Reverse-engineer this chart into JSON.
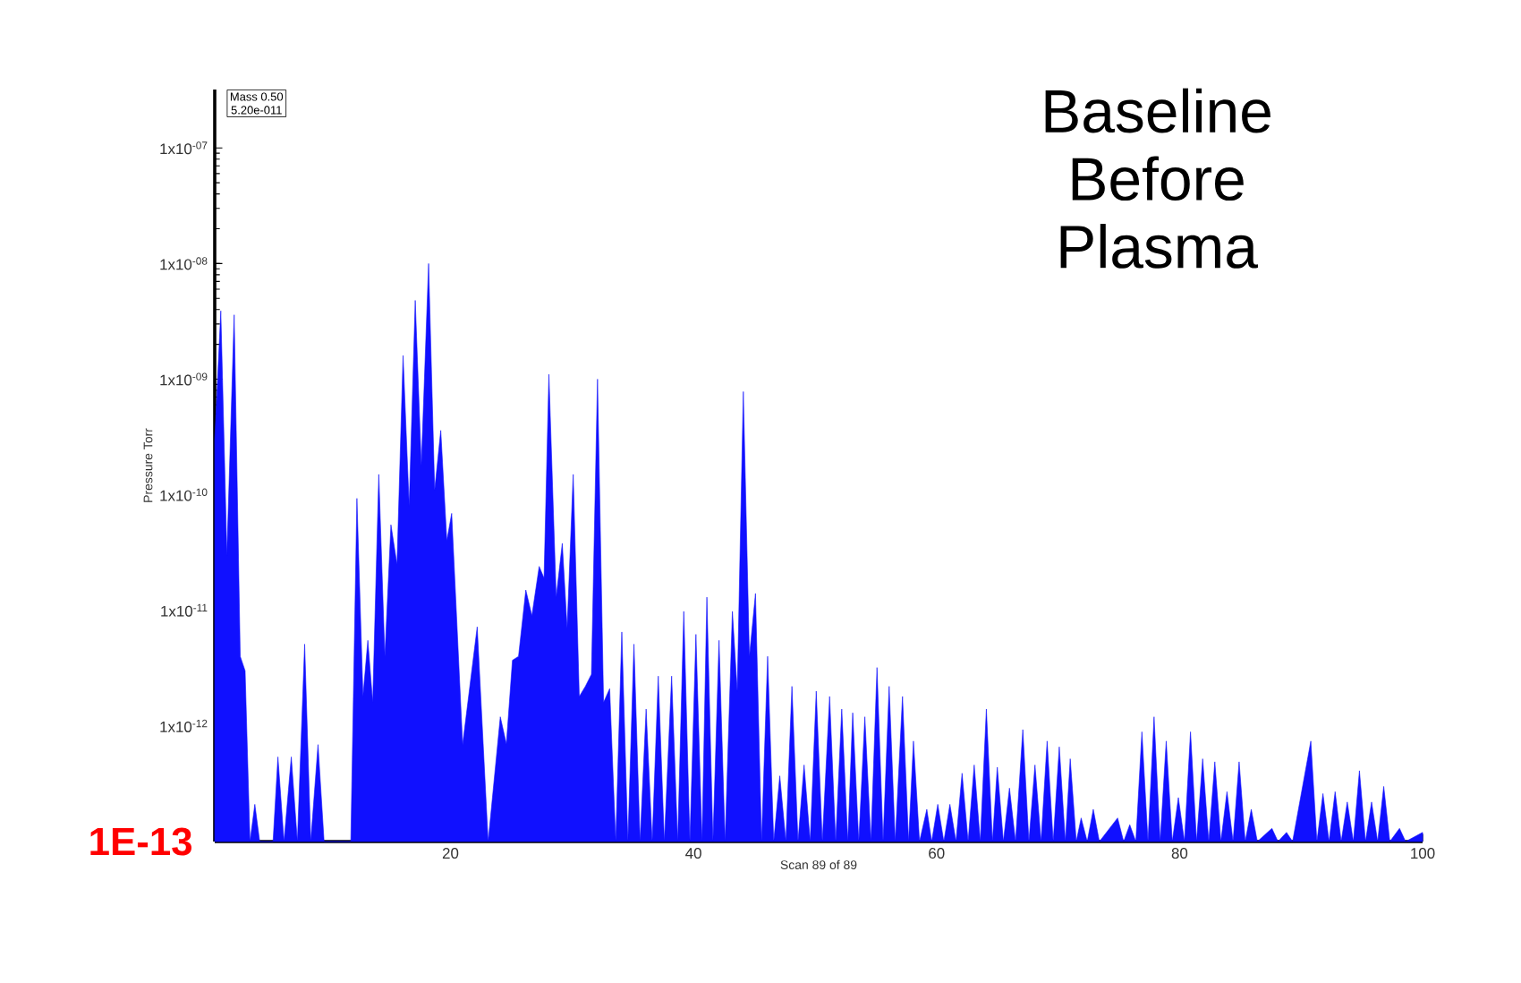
{
  "chart_data": {
    "type": "area",
    "title": "Baseline Before Plasma",
    "xlabel": "Scan 89 of 89",
    "ylabel": "Pressure Torr",
    "annotations": [
      "Mass 0.50",
      "5.20e-011",
      "1E-13"
    ],
    "log": "y",
    "xlim": [
      0.6,
      100
    ],
    "ylim": [
      1e-13,
      3.2e-07
    ],
    "xticks": [
      20,
      40,
      60,
      80,
      100
    ],
    "yticks": [
      {
        "value": 1e-13,
        "label": null
      },
      {
        "value": 1e-12,
        "label": "1x10$^{-12}$"
      },
      {
        "value": 1e-11,
        "label": "1x10$^{-11}$"
      },
      {
        "value": 1e-10,
        "label": "1x10$^{-10}$"
      },
      {
        "value": 1e-09,
        "label": "1x10$^{-09}$"
      },
      {
        "value": 1e-08,
        "label": "1x10$^{-08}$"
      },
      {
        "value": 1e-07,
        "label": "1x10$^{-07}$"
      }
    ],
    "x": [
      0.6,
      1.1,
      1.6,
      2.2,
      2.7,
      3.1,
      3.5,
      3.9,
      4.3,
      5.4,
      5.8,
      6.3,
      6.9,
      7.4,
      8.0,
      8.5,
      9.1,
      9.6,
      11.8,
      12.3,
      12.8,
      13.2,
      13.6,
      14.1,
      14.6,
      15.1,
      15.6,
      16.1,
      16.6,
      17.1,
      17.6,
      18.2,
      18.7,
      19.2,
      19.7,
      20.1,
      21.0,
      22.2,
      23.1,
      24.1,
      24.6,
      25.1,
      25.6,
      26.2,
      26.7,
      27.3,
      27.7,
      28.1,
      28.7,
      29.2,
      29.6,
      30.1,
      30.6,
      31.1,
      31.6,
      32.1,
      32.6,
      33.1,
      33.6,
      34.1,
      34.6,
      35.1,
      35.6,
      36.1,
      36.6,
      37.1,
      37.6,
      38.2,
      38.7,
      39.2,
      39.7,
      40.2,
      40.7,
      41.1,
      41.6,
      42.1,
      42.6,
      43.2,
      43.6,
      44.1,
      44.6,
      45.1,
      45.6,
      46.1,
      46.6,
      47.1,
      47.6,
      48.1,
      48.6,
      49.1,
      49.6,
      50.1,
      50.6,
      51.2,
      51.7,
      52.2,
      52.7,
      53.1,
      53.6,
      54.1,
      54.6,
      55.1,
      55.6,
      56.1,
      56.6,
      57.2,
      57.7,
      58.1,
      58.6,
      59.2,
      59.6,
      60.1,
      60.6,
      61.1,
      61.6,
      62.1,
      62.6,
      63.1,
      63.6,
      64.1,
      64.6,
      65.0,
      65.5,
      66.0,
      66.5,
      67.1,
      67.6,
      68.1,
      68.6,
      69.1,
      69.6,
      70.1,
      70.6,
      71.0,
      71.5,
      71.9,
      72.4,
      72.9,
      73.4,
      74.9,
      75.4,
      75.9,
      76.4,
      76.9,
      77.4,
      77.9,
      78.4,
      78.9,
      79.4,
      79.9,
      80.4,
      80.9,
      81.4,
      81.9,
      82.4,
      82.9,
      83.4,
      83.9,
      84.4,
      84.9,
      85.4,
      85.9,
      86.4,
      87.6,
      88.1,
      88.8,
      89.3,
      90.8,
      91.3,
      91.8,
      92.3,
      92.8,
      93.3,
      93.8,
      94.3,
      94.8,
      95.3,
      95.8,
      96.3,
      96.8,
      97.3,
      98.1,
      98.6,
      100
    ],
    "series": [
      {
        "color": "#1010ff",
        "values": [
          3e-10,
          3.9e-09,
          3e-11,
          3.6e-09,
          4e-12,
          3e-12,
          1e-13,
          2.1e-13,
          1e-13,
          1e-13,
          5.4e-13,
          1e-13,
          5.4e-13,
          1e-13,
          5.1e-12,
          1e-13,
          6.9e-13,
          1e-13,
          1e-13,
          9.3e-11,
          1.8e-12,
          5.5e-12,
          1.6e-12,
          1.5e-10,
          4e-12,
          5.5e-11,
          2.5e-11,
          1.6e-09,
          8e-11,
          4.8e-09,
          1.8e-10,
          1e-08,
          1.1e-10,
          3.6e-10,
          4e-11,
          6.9e-11,
          6.9e-13,
          7.2e-12,
          1e-13,
          1.2e-12,
          7e-13,
          3.7e-12,
          4e-12,
          1.5e-11,
          9e-12,
          2.4e-11,
          1.9e-11,
          1.1e-09,
          1.3e-11,
          3.8e-11,
          7e-12,
          1.5e-10,
          1.8e-12,
          2.2e-12,
          2.8e-12,
          1e-09,
          1.6e-12,
          2.1e-12,
          1e-13,
          6.5e-12,
          1e-13,
          5.1e-12,
          1e-13,
          1.4e-12,
          1e-13,
          2.7e-12,
          1e-13,
          2.7e-12,
          1e-13,
          9.8e-12,
          1e-13,
          6.2e-12,
          1e-13,
          1.3e-11,
          1e-13,
          5.5e-12,
          1e-13,
          9.8e-12,
          2e-12,
          7.8e-10,
          4e-12,
          1.4e-11,
          1e-13,
          4e-12,
          1e-13,
          3.7e-13,
          1e-13,
          2.2e-12,
          1e-13,
          4.6e-13,
          1e-13,
          2e-12,
          1e-13,
          1.8e-12,
          1e-13,
          1.4e-12,
          1e-13,
          1.3e-12,
          1e-13,
          1.2e-12,
          1e-13,
          3.2e-12,
          1e-13,
          2.2e-12,
          1e-13,
          1.8e-12,
          1e-13,
          7.4e-13,
          1e-13,
          1.9e-13,
          1e-13,
          2.1e-13,
          1e-13,
          2.1e-13,
          1e-13,
          3.9e-13,
          1e-13,
          4.6e-13,
          1e-13,
          1.4e-12,
          1e-13,
          4.4e-13,
          1e-13,
          2.9e-13,
          1e-13,
          9.3e-13,
          1e-13,
          4.6e-13,
          1e-13,
          7.4e-13,
          1e-13,
          6.6e-13,
          1e-13,
          5.2e-13,
          1e-13,
          1.6e-13,
          1e-13,
          1.9e-13,
          1e-13,
          1.6e-13,
          1e-13,
          1.4e-13,
          1e-13,
          8.9e-13,
          1e-13,
          1.2e-12,
          1e-13,
          7.4e-13,
          1e-13,
          2.4e-13,
          1e-13,
          8.9e-13,
          1e-13,
          5.2e-13,
          1e-13,
          4.9e-13,
          1e-13,
          2.7e-13,
          1e-13,
          4.9e-13,
          1e-13,
          1.9e-13,
          1e-13,
          1.3e-13,
          1e-13,
          1.2e-13,
          1e-13,
          7.4e-13,
          1e-13,
          2.6e-13,
          1e-13,
          2.7e-13,
          1e-13,
          2.2e-13,
          1e-13,
          4.1e-13,
          1e-13,
          2.2e-13,
          1e-13,
          3e-13,
          1e-13,
          1.3e-13,
          1e-13,
          1.2e-13
        ]
      }
    ]
  }
}
